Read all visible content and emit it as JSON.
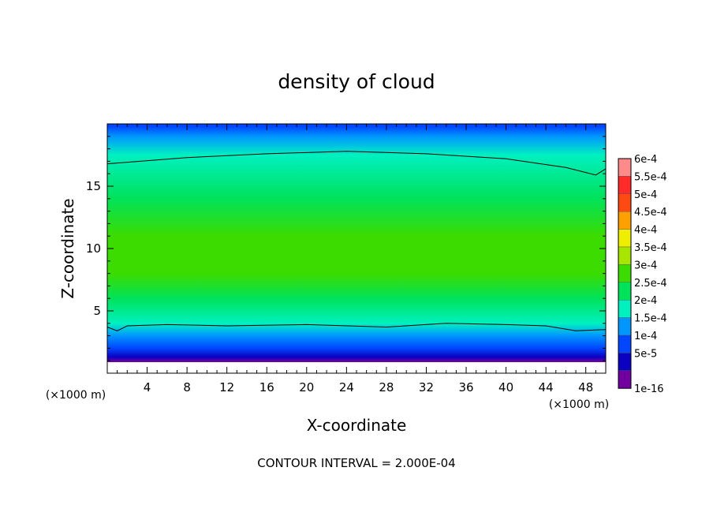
{
  "chart_data": {
    "type": "heatmap",
    "title": "density of cloud",
    "xlabel": "X-coordinate",
    "ylabel": "Z-coordinate",
    "x_unit": "(×1000 m)",
    "z_unit": "(×1000 m)",
    "xlim": [
      0,
      50
    ],
    "ylim": [
      0,
      20
    ],
    "x_ticks": [
      "4",
      "8",
      "12",
      "16",
      "20",
      "24",
      "28",
      "32",
      "36",
      "40",
      "44",
      "48"
    ],
    "y_ticks": [
      "5",
      "10",
      "15"
    ],
    "footer": "CONTOUR INTERVAL = 2.000E-04",
    "colorbar": {
      "labels": [
        "6e-4",
        "5.5e-4",
        "5e-4",
        "4.5e-4",
        "4e-4",
        "3.5e-4",
        "3e-4",
        "2.5e-4",
        "2e-4",
        "1.5e-4",
        "1e-4",
        "5e-5",
        "1e-16"
      ],
      "colors": [
        "#ff8a8a",
        "#ff2a2a",
        "#ff4a14",
        "#ffa000",
        "#f0ee00",
        "#a8e600",
        "#3cdc00",
        "#00e25a",
        "#00f0c0",
        "#0096ff",
        "#0046ff",
        "#0c00c0",
        "#7000a0"
      ]
    },
    "vertical_profile": [
      {
        "z": 0.9,
        "value": 1e-16
      },
      {
        "z": 1.3,
        "value": 5e-05
      },
      {
        "z": 2.0,
        "value": 0.0001
      },
      {
        "z": 3.0,
        "value": 0.00015
      },
      {
        "z": 4.0,
        "value": 0.0002
      },
      {
        "z": 6.0,
        "value": 0.00025
      },
      {
        "z": 8.0,
        "value": 0.0003
      },
      {
        "z": 11.0,
        "value": 0.0003
      },
      {
        "z": 14.0,
        "value": 0.00025
      },
      {
        "z": 17.5,
        "value": 0.0002
      },
      {
        "z": 19.0,
        "value": 0.00015
      },
      {
        "z": 19.8,
        "value": 0.0001
      }
    ],
    "contour_lines": [
      {
        "level": 0.0002,
        "points": [
          [
            0,
            16.8
          ],
          [
            8,
            17.3
          ],
          [
            16,
            17.6
          ],
          [
            24,
            17.8
          ],
          [
            32,
            17.6
          ],
          [
            40,
            17.2
          ],
          [
            46,
            16.5
          ],
          [
            49,
            15.9
          ],
          [
            50,
            16.4
          ]
        ]
      },
      {
        "level": 0.0002,
        "points": [
          [
            0,
            3.7
          ],
          [
            1,
            3.4
          ],
          [
            2,
            3.8
          ],
          [
            6,
            3.9
          ],
          [
            12,
            3.8
          ],
          [
            20,
            3.9
          ],
          [
            28,
            3.7
          ],
          [
            34,
            4.0
          ],
          [
            40,
            3.9
          ],
          [
            44,
            3.8
          ],
          [
            47,
            3.4
          ],
          [
            50,
            3.5
          ]
        ]
      }
    ]
  }
}
